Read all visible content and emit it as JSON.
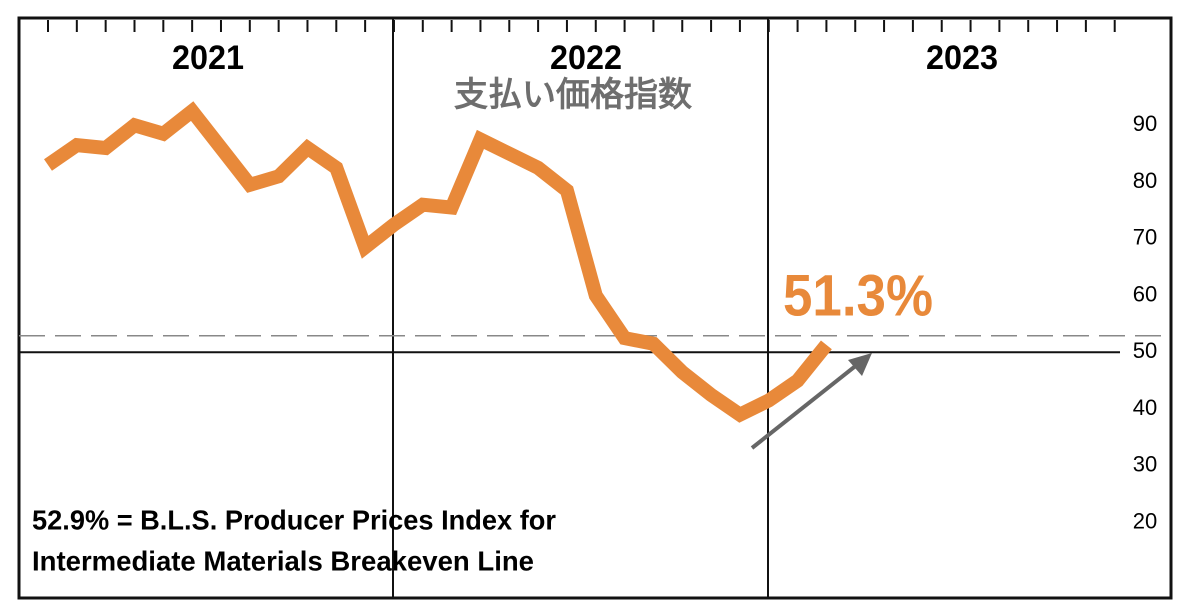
{
  "chart_data": {
    "type": "line",
    "title": "支払い価格指数",
    "years": [
      "2021",
      "2022",
      "2023"
    ],
    "categories": [
      null,
      null,
      null,
      null,
      null,
      null,
      null,
      null,
      null,
      null,
      null,
      null,
      null,
      null,
      null,
      null,
      null,
      null,
      null,
      null,
      null,
      null,
      null,
      null,
      null,
      null,
      null,
      null
    ],
    "values": [
      83,
      86.5,
      86,
      90,
      88.5,
      92.5,
      86,
      79.5,
      81,
      86,
      82.5,
      68.5,
      72.5,
      76,
      75.5,
      87.5,
      85,
      82.5,
      78.5,
      60,
      52.5,
      51.5,
      46.5,
      42.5,
      39,
      41.5,
      45,
      51.3
    ],
    "value_labels": [
      null,
      null,
      null,
      null,
      null,
      null,
      null,
      null,
      null,
      null,
      null,
      null,
      null,
      null,
      null,
      null,
      null,
      null,
      null,
      null,
      null,
      null,
      null,
      null,
      null,
      null,
      null,
      "51.3%"
    ],
    "color": "#e8893a",
    "ylim": [
      6.7,
      108.9
    ],
    "yticks": [
      20,
      30,
      40,
      50,
      60,
      70,
      80,
      90
    ],
    "reference_lines": [
      {
        "value": 50,
        "style": "solid"
      },
      {
        "value": 52.9,
        "style": "dashed"
      }
    ],
    "annotations": [
      "52.9% = B.L.S. Producer Prices Index for",
      "Intermediate Materials Breakeven Line"
    ]
  }
}
